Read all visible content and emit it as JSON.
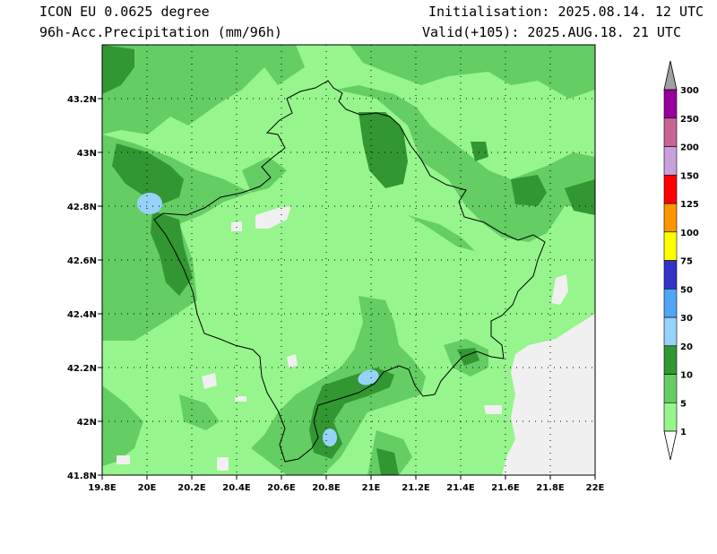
{
  "header": {
    "model": "ICON EU 0.0625 degree",
    "field": "96h-Acc.Precipitation (mm/96h)",
    "init": "Initialisation: 2025.08.14. 12 UTC",
    "valid": "Valid(+105): 2025.AUG.18. 21 UTC"
  },
  "axes": {
    "lat_labels": [
      "43.2N",
      "43N",
      "42.8N",
      "42.6N",
      "42.4N",
      "42.2N",
      "42N",
      "41.8N"
    ],
    "lon_labels": [
      "19.8E",
      "20E",
      "20.2E",
      "20.4E",
      "20.6E",
      "20.8E",
      "21E",
      "21.2E",
      "21.4E",
      "21.6E",
      "21.8E",
      "22E"
    ]
  },
  "legend": {
    "levels": [
      "1",
      "5",
      "10",
      "20",
      "30",
      "50",
      "75",
      "100",
      "125",
      "150",
      "200",
      "250",
      "300"
    ],
    "colors": [
      "#96f58c",
      "#64cd64",
      "#329632",
      "#96d2fa",
      "#50a5f5",
      "#3232c8",
      "#ffff00",
      "#ff9600",
      "#ff0000",
      "#c8a0dc",
      "#c86496",
      "#96009b"
    ],
    "below_color": "#ffffff",
    "above_color": "#a0a0a0"
  },
  "colors": {
    "light_green": "#96f58c",
    "mid_green": "#64cd64",
    "dark_green": "#329632",
    "light_blue": "#96d2fa",
    "no_rain": "#f0f0f0"
  }
}
